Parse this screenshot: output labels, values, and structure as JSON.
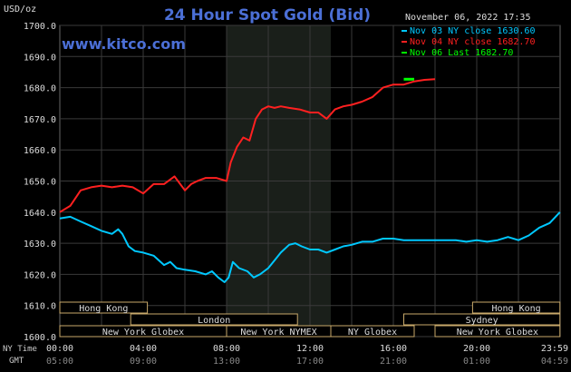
{
  "chart_data": {
    "type": "line",
    "title": "24 Hour Spot Gold (Bid)",
    "site": "www.kitco.com",
    "timestamp": "November 06, 2022 17:35",
    "ylabel": "USD/oz",
    "ylim": [
      1600,
      1700
    ],
    "yticks": [
      "1600.0",
      "1610.0",
      "1620.0",
      "1630.0",
      "1640.0",
      "1650.0",
      "1660.0",
      "1670.0",
      "1680.0",
      "1690.0",
      "1700.0"
    ],
    "x_range_hours": [
      0,
      24
    ],
    "x_row_label_ny": "NY Time",
    "x_row_label_gmt": "GMT",
    "xticks_ny": [
      "00:00",
      "04:00",
      "08:00",
      "12:00",
      "16:00",
      "20:00",
      "23:59"
    ],
    "xticks_gmt": [
      "05:00",
      "09:00",
      "13:00",
      "17:00",
      "21:00",
      "01:00",
      "04:59"
    ],
    "xtick_hours": [
      0,
      4,
      8,
      12,
      16,
      20,
      24
    ],
    "grid": true,
    "legend_position": "top-right",
    "legend": [
      {
        "label": "Nov 03 NY close 1630.60",
        "color": "#00c8ff"
      },
      {
        "label": "Nov 04 NY close 1682.70",
        "color": "#ff2020"
      },
      {
        "label": "Nov 06 Last 1682.70",
        "color": "#00ff00"
      }
    ],
    "shaded_session_hours": [
      8.0,
      13.0
    ],
    "sessions": [
      {
        "label": "Hong Kong",
        "start": 0,
        "end": 4.2,
        "row": 0
      },
      {
        "label": "Hong Kong",
        "start": 19.8,
        "end": 23.99,
        "row": 0
      },
      {
        "label": "London",
        "start": 3.4,
        "end": 11.4,
        "row": 1
      },
      {
        "label": "Sydney",
        "start": 16.5,
        "end": 23.99,
        "row": 1
      },
      {
        "label": "New York Globex",
        "start": 0,
        "end": 8.0,
        "row": 2
      },
      {
        "label": "New York NYMEX",
        "start": 8.0,
        "end": 13.0,
        "row": 2
      },
      {
        "label": "NY Globex",
        "start": 13.0,
        "end": 17.0,
        "row": 2
      },
      {
        "label": "New York Globex",
        "start": 18.0,
        "end": 23.99,
        "row": 2
      }
    ],
    "series": [
      {
        "name": "Nov 03 NY close 1630.60",
        "color": "#00c8ff",
        "x": [
          0,
          0.5,
          1.0,
          1.5,
          2.0,
          2.5,
          2.8,
          3.0,
          3.3,
          3.6,
          4.0,
          4.5,
          5.0,
          5.3,
          5.6,
          6.0,
          6.5,
          7.0,
          7.3,
          7.6,
          7.9,
          8.1,
          8.3,
          8.6,
          9.0,
          9.3,
          9.6,
          10.0,
          10.3,
          10.6,
          11.0,
          11.3,
          11.6,
          12.0,
          12.4,
          12.8,
          13.2,
          13.6,
          14.0,
          14.5,
          15.0,
          15.5,
          16.0,
          16.5,
          17.0,
          17.5,
          18.0,
          18.5,
          19.0,
          19.5,
          20.0,
          20.5,
          21.0,
          21.5,
          22.0,
          22.5,
          23.0,
          23.5,
          23.99
        ],
        "y": [
          1638,
          1638.5,
          1637,
          1635.5,
          1634,
          1633,
          1634.5,
          1633,
          1629,
          1627.5,
          1627,
          1626,
          1623,
          1624,
          1622,
          1621.5,
          1621,
          1620,
          1621,
          1619,
          1617.5,
          1619,
          1624,
          1622,
          1621,
          1619,
          1620,
          1622,
          1624.5,
          1627,
          1629.5,
          1630,
          1629,
          1628,
          1628,
          1627,
          1628,
          1629,
          1629.5,
          1630.5,
          1630.5,
          1631.5,
          1631.5,
          1631,
          1631,
          1631,
          1631,
          1631,
          1631,
          1630.5,
          1631,
          1630.5,
          1631,
          1632,
          1631,
          1632.5,
          1635,
          1636.5,
          1640
        ]
      },
      {
        "name": "Nov 04 NY close 1682.70",
        "color": "#ff2020",
        "x": [
          0,
          0.5,
          1.0,
          1.5,
          2.0,
          2.5,
          3.0,
          3.5,
          4.0,
          4.5,
          5.0,
          5.5,
          6.0,
          6.3,
          6.6,
          7.0,
          7.5,
          8.0,
          8.2,
          8.5,
          8.8,
          9.1,
          9.4,
          9.7,
          10.0,
          10.3,
          10.6,
          11.0,
          11.5,
          12.0,
          12.4,
          12.8,
          13.2,
          13.6,
          14.0,
          14.5,
          15.0,
          15.5,
          16.0,
          16.5,
          17.0,
          17.5,
          18.0
        ],
        "y": [
          1640,
          1642,
          1647,
          1648,
          1648.5,
          1648,
          1648.5,
          1648,
          1646,
          1649,
          1649,
          1651.5,
          1647,
          1649,
          1650,
          1651,
          1651,
          1650,
          1656,
          1661,
          1664,
          1663,
          1670,
          1673,
          1674,
          1673.5,
          1674,
          1673.5,
          1673,
          1672,
          1672,
          1670,
          1673,
          1674,
          1674.5,
          1675.5,
          1677,
          1680,
          1681,
          1681,
          1682,
          1682.5,
          1682.7
        ]
      },
      {
        "name": "Nov 06 Last 1682.70",
        "color": "#00ff00",
        "x": [
          16.5,
          17.0
        ],
        "y": [
          1682.7,
          1682.7
        ]
      }
    ]
  }
}
